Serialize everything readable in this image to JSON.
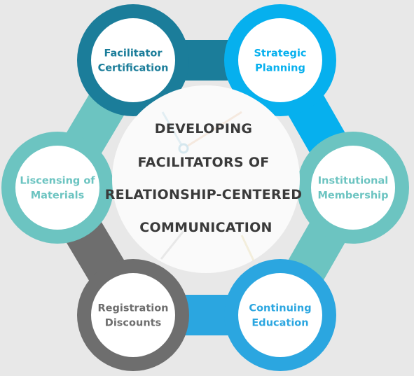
{
  "center": {
    "lines": [
      "DEVELOPING",
      "FACILITATORS OF",
      "RELATIONSHIP-CENTERED",
      "COMMUNICATION"
    ]
  },
  "nodes": [
    {
      "key": "facilitator-certification",
      "lines": [
        "Facilitator",
        "Certification"
      ],
      "color": "#1b7d9a"
    },
    {
      "key": "strategic-planning",
      "lines": [
        "Strategic",
        "Planning"
      ],
      "color": "#06b0ee"
    },
    {
      "key": "institutional-membership",
      "lines": [
        "Institutional",
        "Membership"
      ],
      "color": "#6cc4c1"
    },
    {
      "key": "continuing-education",
      "lines": [
        "Continuing",
        "Education"
      ],
      "color": "#2ba6e0"
    },
    {
      "key": "registration-discounts",
      "lines": [
        "Registration",
        "Discounts"
      ],
      "color": "#6e6e6e"
    },
    {
      "key": "liscensing-of-materials",
      "lines": [
        "Liscensing of",
        "Materials"
      ],
      "color": "#6cc4c1"
    }
  ],
  "colors": {
    "background": "#e8e8e8",
    "hub_fill": "#fafafa",
    "node_fill": "#ffffff",
    "center_text": "#3a3a3a"
  }
}
